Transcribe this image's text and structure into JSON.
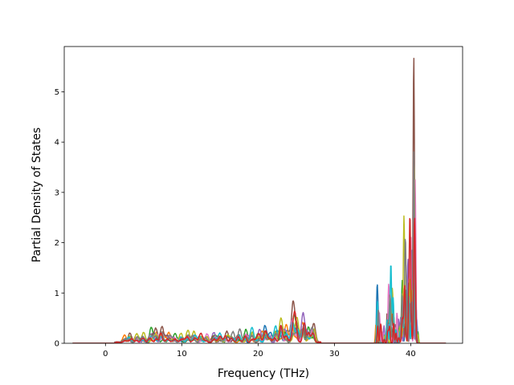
{
  "chart_data": {
    "type": "line",
    "title": "",
    "xlabel": "Frequency (THz)",
    "ylabel": "Partial Density of States",
    "xlim": [
      -5.4,
      46.8
    ],
    "ylim": [
      0,
      5.9
    ],
    "xticks": [
      0,
      10,
      20,
      30,
      40
    ],
    "yticks": [
      0,
      1,
      2,
      3,
      4,
      5
    ],
    "grid": false,
    "legend": "none",
    "series_colors": [
      "#1f77b4",
      "#ff7f0e",
      "#2ca02c",
      "#d62728",
      "#9467bd",
      "#8c564b",
      "#e377c2",
      "#7f7f7f",
      "#bcbd22",
      "#17becf"
    ],
    "x_range": [
      -4.3,
      44.6
    ],
    "low_band_peaks": [
      [
        2.5,
        0.14
      ],
      [
        3.2,
        0.18
      ],
      [
        4.1,
        0.17
      ],
      [
        5.0,
        0.2
      ],
      [
        6.0,
        0.3
      ],
      [
        6.6,
        0.28
      ],
      [
        7.4,
        0.31
      ],
      [
        8.3,
        0.2
      ],
      [
        9.1,
        0.17
      ],
      [
        9.9,
        0.18
      ],
      [
        10.8,
        0.24
      ],
      [
        11.6,
        0.22
      ],
      [
        12.5,
        0.18
      ],
      [
        13.3,
        0.17
      ],
      [
        14.2,
        0.2
      ],
      [
        15.0,
        0.18
      ],
      [
        15.9,
        0.22
      ],
      [
        16.7,
        0.21
      ],
      [
        17.6,
        0.26
      ],
      [
        18.4,
        0.25
      ],
      [
        19.2,
        0.3
      ],
      [
        20.2,
        0.26
      ],
      [
        20.9,
        0.33
      ],
      [
        21.6,
        0.2
      ],
      [
        22.3,
        0.32
      ],
      [
        23.0,
        0.48
      ],
      [
        23.7,
        0.35
      ],
      [
        24.6,
        0.82
      ],
      [
        25.1,
        0.45
      ],
      [
        25.9,
        0.58
      ],
      [
        26.6,
        0.3
      ],
      [
        27.3,
        0.38
      ]
    ],
    "high_band_peaks": [
      [
        35.6,
        1.1
      ],
      [
        35.9,
        0.6
      ],
      [
        36.5,
        0.35
      ],
      [
        37.1,
        1.1
      ],
      [
        37.4,
        1.6
      ],
      [
        37.7,
        0.9
      ],
      [
        38.2,
        0.6
      ],
      [
        38.6,
        0.42
      ],
      [
        38.9,
        0.9
      ],
      [
        39.1,
        1.88
      ],
      [
        39.3,
        1.55
      ],
      [
        39.6,
        0.9
      ],
      [
        39.9,
        2.22
      ],
      [
        40.2,
        1.5
      ],
      [
        40.4,
        5.62
      ],
      [
        40.6,
        1.2
      ],
      [
        40.8,
        0.35
      ]
    ]
  }
}
